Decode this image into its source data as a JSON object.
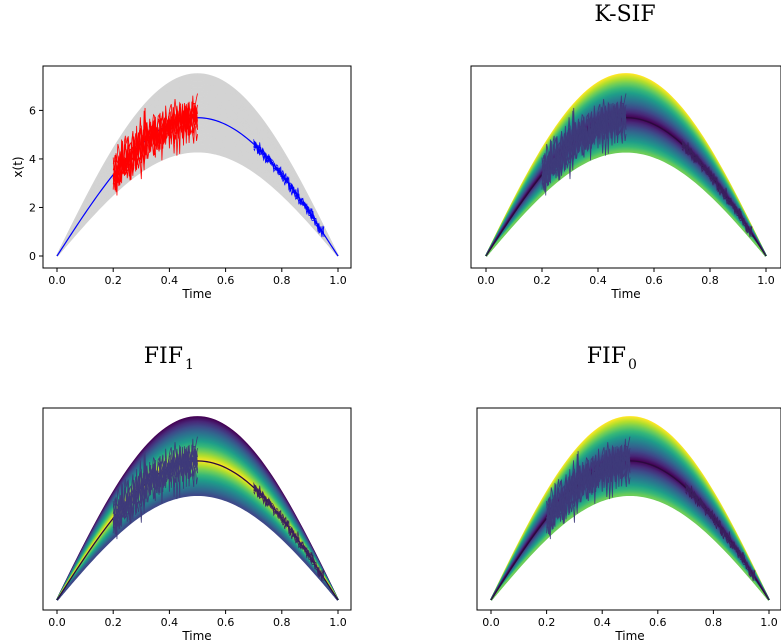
{
  "chart_data": [
    {
      "type": "line",
      "title": "",
      "xlabel": "Time",
      "ylabel": "x(t)",
      "xlim": [
        0.0,
        1.0
      ],
      "ylim": [
        0,
        7.5
      ],
      "xticks": [
        "0.0",
        "0.2",
        "0.4",
        "0.6",
        "0.8",
        "1.0"
      ],
      "yticks": [
        "0",
        "2",
        "4",
        "6"
      ],
      "colormap": "none",
      "colors": {
        "band": "#d3d3d3",
        "mean": "#0000ff",
        "anomaly": "#ff0000"
      },
      "series": [
        {
          "x": [
            0.0,
            0.1,
            0.2,
            0.3,
            0.4,
            0.5,
            0.6,
            0.7,
            0.8,
            0.9,
            1.0
          ],
          "y": [
            0.0,
            1.76,
            3.35,
            4.6,
            5.41,
            5.7,
            5.41,
            4.6,
            3.35,
            1.76,
            0.0
          ]
        },
        {
          "x": [
            0.0,
            0.1,
            0.2,
            0.3,
            0.4,
            0.5,
            0.6,
            0.7,
            0.8,
            0.9,
            1.0
          ],
          "y": [
            0.0,
            2.3,
            4.4,
            6.05,
            7.1,
            7.5,
            7.1,
            6.05,
            4.4,
            2.3,
            0.0
          ]
        },
        {
          "x": [
            0.0,
            0.1,
            0.2,
            0.3,
            0.4,
            0.5,
            0.6,
            0.7,
            0.8,
            0.9,
            1.0
          ],
          "y": [
            0.0,
            1.33,
            2.52,
            3.47,
            4.08,
            4.3,
            4.08,
            3.47,
            2.52,
            1.33,
            0.0
          ]
        }
      ]
    },
    {
      "type": "line",
      "title": "K-SIF",
      "xlabel": "Time",
      "ylabel": "",
      "xlim": [
        0.0,
        1.0
      ],
      "ylim": [
        0,
        7.5
      ],
      "xticks": [
        "0.0",
        "0.2",
        "0.4",
        "0.6",
        "0.8",
        "1.0"
      ],
      "yticks": [],
      "colormap": "viridis-reversed"
    },
    {
      "type": "line",
      "title": "FIF",
      "title_subscript": "1",
      "xlabel": "Time",
      "ylabel": "",
      "xlim": [
        0.0,
        1.0
      ],
      "ylim": [
        0,
        7.5
      ],
      "xticks": [
        "0.0",
        "0.2",
        "0.4",
        "0.6",
        "0.8",
        "1.0"
      ],
      "yticks": [],
      "colormap": "viridis"
    },
    {
      "type": "line",
      "title": "FIF",
      "title_subscript": "0",
      "xlabel": "Time",
      "ylabel": "",
      "xlim": [
        0.0,
        1.0
      ],
      "ylim": [
        0,
        7.5
      ],
      "xticks": [
        "0.0",
        "0.2",
        "0.4",
        "0.6",
        "0.8",
        "1.0"
      ],
      "yticks": [],
      "colormap": "viridis-reversed"
    }
  ]
}
